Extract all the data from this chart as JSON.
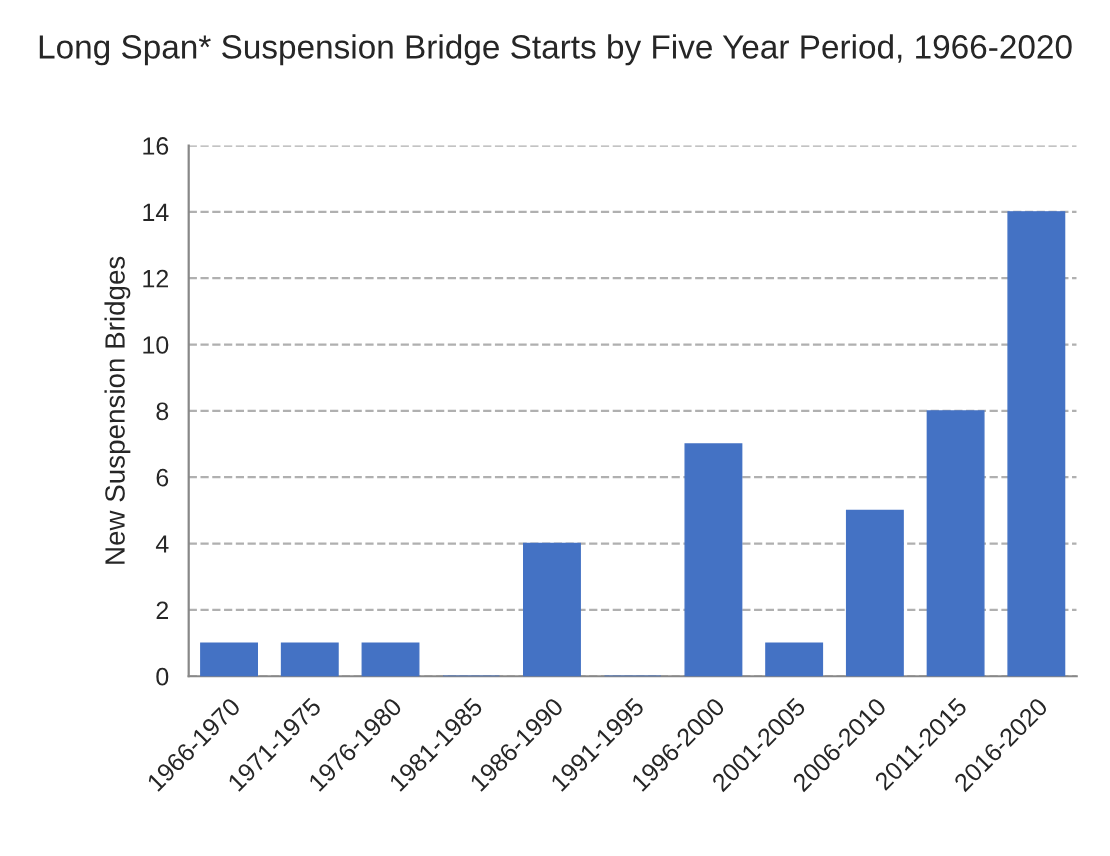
{
  "chart_data": {
    "type": "bar",
    "title": "Long Span* Suspension Bridge Starts by Five Year Period, 1966-2020",
    "ylabel": "New Suspension Bridges",
    "categories": [
      "1966-1970",
      "1971-1975",
      "1976-1980",
      "1981-1985",
      "1986-1990",
      "1991-1995",
      "1996-2000",
      "2001-2005",
      "2006-2010",
      "2011-2015",
      "2016-2020"
    ],
    "values": [
      1,
      1,
      1,
      0,
      4,
      0,
      7,
      1,
      5,
      8,
      14
    ],
    "color": "#4472c4",
    "ylim": [
      0,
      16
    ],
    "yticks": [
      0,
      2,
      4,
      6,
      8,
      10,
      12,
      14,
      16
    ],
    "grid": "y"
  }
}
